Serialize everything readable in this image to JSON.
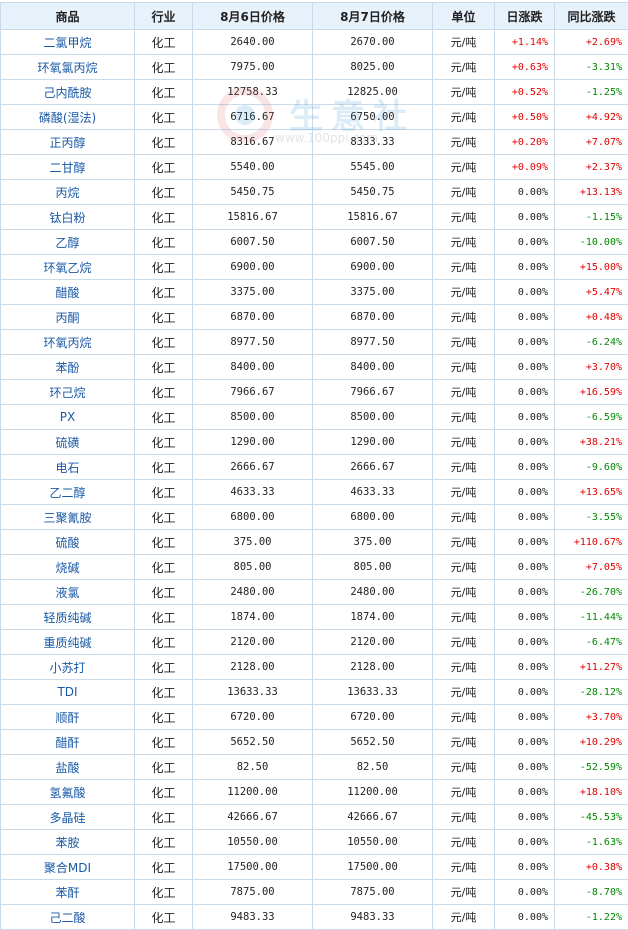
{
  "headers": [
    "商品",
    "行业",
    "8月6日价格",
    "8月7日价格",
    "单位",
    "日涨跌",
    "同比涨跌"
  ],
  "watermark": {
    "text": "生意社",
    "url": "www.100ppi.com"
  },
  "rows": [
    {
      "name": "二氯甲烷",
      "industry": "化工",
      "p1": "2640.00",
      "p2": "2670.00",
      "unit": "元/吨",
      "day": "+1.14%",
      "yoy": "+2.69%"
    },
    {
      "name": "环氧氯丙烷",
      "industry": "化工",
      "p1": "7975.00",
      "p2": "8025.00",
      "unit": "元/吨",
      "day": "+0.63%",
      "yoy": "-3.31%"
    },
    {
      "name": "己内酰胺",
      "industry": "化工",
      "p1": "12758.33",
      "p2": "12825.00",
      "unit": "元/吨",
      "day": "+0.52%",
      "yoy": "-1.25%"
    },
    {
      "name": "磷酸(湿法)",
      "industry": "化工",
      "p1": "6716.67",
      "p2": "6750.00",
      "unit": "元/吨",
      "day": "+0.50%",
      "yoy": "+4.92%"
    },
    {
      "name": "正丙醇",
      "industry": "化工",
      "p1": "8316.67",
      "p2": "8333.33",
      "unit": "元/吨",
      "day": "+0.20%",
      "yoy": "+7.07%"
    },
    {
      "name": "二甘醇",
      "industry": "化工",
      "p1": "5540.00",
      "p2": "5545.00",
      "unit": "元/吨",
      "day": "+0.09%",
      "yoy": "+2.37%"
    },
    {
      "name": "丙烷",
      "industry": "化工",
      "p1": "5450.75",
      "p2": "5450.75",
      "unit": "元/吨",
      "day": "0.00%",
      "yoy": "+13.13%"
    },
    {
      "name": "钛白粉",
      "industry": "化工",
      "p1": "15816.67",
      "p2": "15816.67",
      "unit": "元/吨",
      "day": "0.00%",
      "yoy": "-1.15%"
    },
    {
      "name": "乙醇",
      "industry": "化工",
      "p1": "6007.50",
      "p2": "6007.50",
      "unit": "元/吨",
      "day": "0.00%",
      "yoy": "-10.00%"
    },
    {
      "name": "环氧乙烷",
      "industry": "化工",
      "p1": "6900.00",
      "p2": "6900.00",
      "unit": "元/吨",
      "day": "0.00%",
      "yoy": "+15.00%"
    },
    {
      "name": "醋酸",
      "industry": "化工",
      "p1": "3375.00",
      "p2": "3375.00",
      "unit": "元/吨",
      "day": "0.00%",
      "yoy": "+5.47%"
    },
    {
      "name": "丙酮",
      "industry": "化工",
      "p1": "6870.00",
      "p2": "6870.00",
      "unit": "元/吨",
      "day": "0.00%",
      "yoy": "+0.48%"
    },
    {
      "name": "环氧丙烷",
      "industry": "化工",
      "p1": "8977.50",
      "p2": "8977.50",
      "unit": "元/吨",
      "day": "0.00%",
      "yoy": "-6.24%"
    },
    {
      "name": "苯酚",
      "industry": "化工",
      "p1": "8400.00",
      "p2": "8400.00",
      "unit": "元/吨",
      "day": "0.00%",
      "yoy": "+3.70%"
    },
    {
      "name": "环己烷",
      "industry": "化工",
      "p1": "7966.67",
      "p2": "7966.67",
      "unit": "元/吨",
      "day": "0.00%",
      "yoy": "+16.59%"
    },
    {
      "name": "PX",
      "industry": "化工",
      "p1": "8500.00",
      "p2": "8500.00",
      "unit": "元/吨",
      "day": "0.00%",
      "yoy": "-6.59%"
    },
    {
      "name": "硫磺",
      "industry": "化工",
      "p1": "1290.00",
      "p2": "1290.00",
      "unit": "元/吨",
      "day": "0.00%",
      "yoy": "+38.21%"
    },
    {
      "name": "电石",
      "industry": "化工",
      "p1": "2666.67",
      "p2": "2666.67",
      "unit": "元/吨",
      "day": "0.00%",
      "yoy": "-9.60%"
    },
    {
      "name": "乙二醇",
      "industry": "化工",
      "p1": "4633.33",
      "p2": "4633.33",
      "unit": "元/吨",
      "day": "0.00%",
      "yoy": "+13.65%"
    },
    {
      "name": "三聚氰胺",
      "industry": "化工",
      "p1": "6800.00",
      "p2": "6800.00",
      "unit": "元/吨",
      "day": "0.00%",
      "yoy": "-3.55%"
    },
    {
      "name": "硫酸",
      "industry": "化工",
      "p1": "375.00",
      "p2": "375.00",
      "unit": "元/吨",
      "day": "0.00%",
      "yoy": "+110.67%"
    },
    {
      "name": "烧碱",
      "industry": "化工",
      "p1": "805.00",
      "p2": "805.00",
      "unit": "元/吨",
      "day": "0.00%",
      "yoy": "+7.05%"
    },
    {
      "name": "液氯",
      "industry": "化工",
      "p1": "2480.00",
      "p2": "2480.00",
      "unit": "元/吨",
      "day": "0.00%",
      "yoy": "-26.70%"
    },
    {
      "name": "轻质纯碱",
      "industry": "化工",
      "p1": "1874.00",
      "p2": "1874.00",
      "unit": "元/吨",
      "day": "0.00%",
      "yoy": "-11.44%"
    },
    {
      "name": "重质纯碱",
      "industry": "化工",
      "p1": "2120.00",
      "p2": "2120.00",
      "unit": "元/吨",
      "day": "0.00%",
      "yoy": "-6.47%"
    },
    {
      "name": "小苏打",
      "industry": "化工",
      "p1": "2128.00",
      "p2": "2128.00",
      "unit": "元/吨",
      "day": "0.00%",
      "yoy": "+11.27%"
    },
    {
      "name": "TDI",
      "industry": "化工",
      "p1": "13633.33",
      "p2": "13633.33",
      "unit": "元/吨",
      "day": "0.00%",
      "yoy": "-28.12%"
    },
    {
      "name": "顺酐",
      "industry": "化工",
      "p1": "6720.00",
      "p2": "6720.00",
      "unit": "元/吨",
      "day": "0.00%",
      "yoy": "+3.70%"
    },
    {
      "name": "醋酐",
      "industry": "化工",
      "p1": "5652.50",
      "p2": "5652.50",
      "unit": "元/吨",
      "day": "0.00%",
      "yoy": "+10.29%"
    },
    {
      "name": "盐酸",
      "industry": "化工",
      "p1": "82.50",
      "p2": "82.50",
      "unit": "元/吨",
      "day": "0.00%",
      "yoy": "-52.59%"
    },
    {
      "name": "氢氟酸",
      "industry": "化工",
      "p1": "11200.00",
      "p2": "11200.00",
      "unit": "元/吨",
      "day": "0.00%",
      "yoy": "+18.10%"
    },
    {
      "name": "多晶硅",
      "industry": "化工",
      "p1": "42666.67",
      "p2": "42666.67",
      "unit": "元/吨",
      "day": "0.00%",
      "yoy": "-45.53%"
    },
    {
      "name": "苯胺",
      "industry": "化工",
      "p1": "10550.00",
      "p2": "10550.00",
      "unit": "元/吨",
      "day": "0.00%",
      "yoy": "-1.63%"
    },
    {
      "name": "聚合MDI",
      "industry": "化工",
      "p1": "17500.00",
      "p2": "17500.00",
      "unit": "元/吨",
      "day": "0.00%",
      "yoy": "+0.38%"
    },
    {
      "name": "苯酐",
      "industry": "化工",
      "p1": "7875.00",
      "p2": "7875.00",
      "unit": "元/吨",
      "day": "0.00%",
      "yoy": "-8.70%"
    },
    {
      "name": "己二酸",
      "industry": "化工",
      "p1": "9483.33",
      "p2": "9483.33",
      "unit": "元/吨",
      "day": "0.00%",
      "yoy": "-1.22%"
    }
  ]
}
